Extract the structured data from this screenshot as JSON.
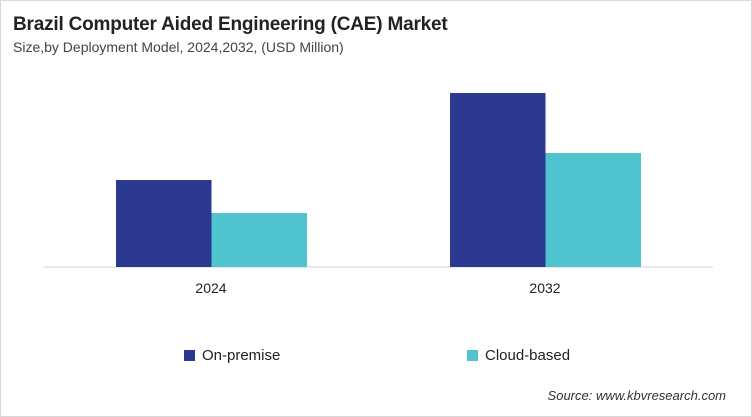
{
  "chart_data": {
    "type": "bar",
    "title": "Brazil Computer Aided Engineering (CAE) Market",
    "subtitle": "Size,by Deployment Model, 2024,2032, (USD Million)",
    "categories": [
      "2024",
      "2032"
    ],
    "series": [
      {
        "name": "On-premise",
        "values": [
          87,
          174
        ],
        "color": "#2b3990"
      },
      {
        "name": "Cloud-based",
        "values": [
          54,
          114
        ],
        "color": "#4fc4cf"
      }
    ],
    "xlabel": "",
    "ylabel": "",
    "ylim": [
      0,
      200
    ],
    "grid": false,
    "legend_position": "bottom",
    "source": "Source: www.kbvresearch.com"
  }
}
